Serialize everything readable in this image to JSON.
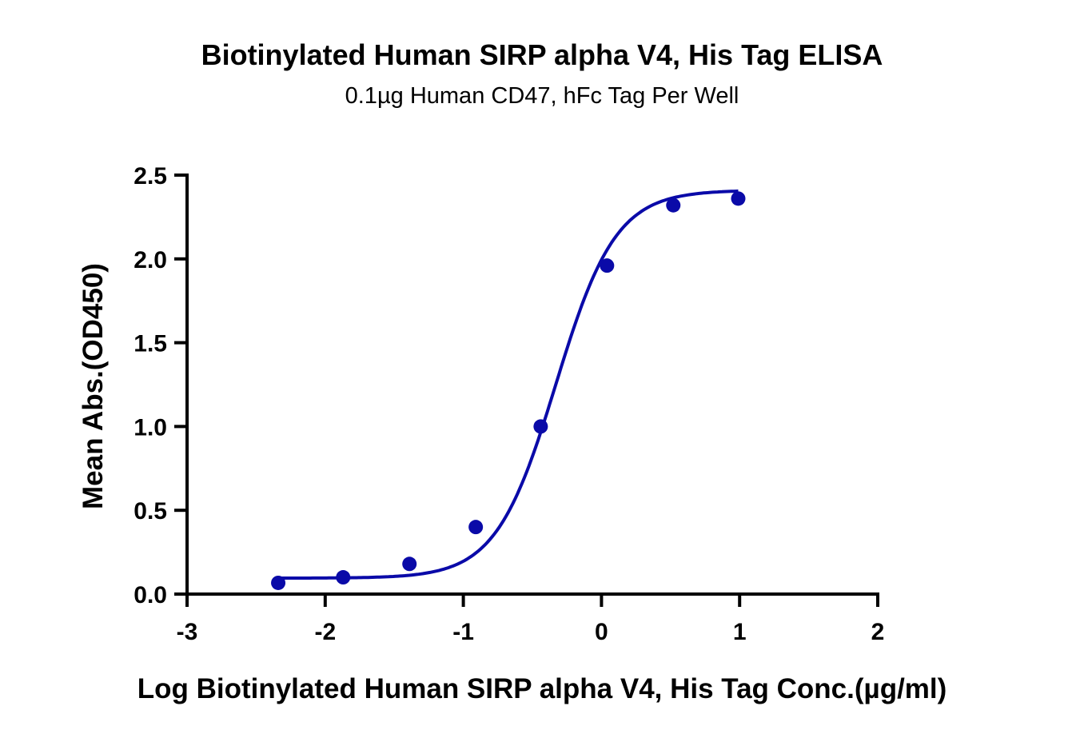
{
  "chart_data": {
    "type": "scatter",
    "title": "Biotinylated Human SIRP alpha V4, His Tag ELISA",
    "subtitle": "0.1µg Human CD47, hFc Tag Per Well",
    "xlabel": "Log Biotinylated Human SIRP alpha V4, His Tag Conc.(µg/ml)",
    "ylabel": "Mean Abs.(OD450)",
    "xlim": [
      -3,
      2
    ],
    "ylim": [
      0,
      2.5
    ],
    "xticks": [
      -3,
      -2,
      -1,
      0,
      1,
      2
    ],
    "yticks": [
      0.0,
      0.5,
      1.0,
      1.5,
      2.0,
      2.5
    ],
    "xtick_labels": [
      "-3",
      "-2",
      "-1",
      "0",
      "1",
      "2"
    ],
    "ytick_labels": [
      "0.0",
      "0.5",
      "1.0",
      "1.5",
      "2.0",
      "2.5"
    ],
    "grid": false,
    "legend": null,
    "series": [
      {
        "name": "Biotinylated Human SIRP alpha V4, His Tag",
        "color": "#0a0aa8",
        "x": [
          -2.34,
          -1.87,
          -1.39,
          -0.91,
          -0.44,
          0.04,
          0.52,
          0.99
        ],
        "y": [
          0.067,
          0.1,
          0.18,
          0.4,
          1.0,
          1.96,
          2.32,
          2.36
        ],
        "fit": "4PL sigmoid",
        "fit_params": {
          "bottom": 0.095,
          "top": 2.41,
          "logEC50": -0.33,
          "hill": 2.0
        }
      }
    ]
  }
}
